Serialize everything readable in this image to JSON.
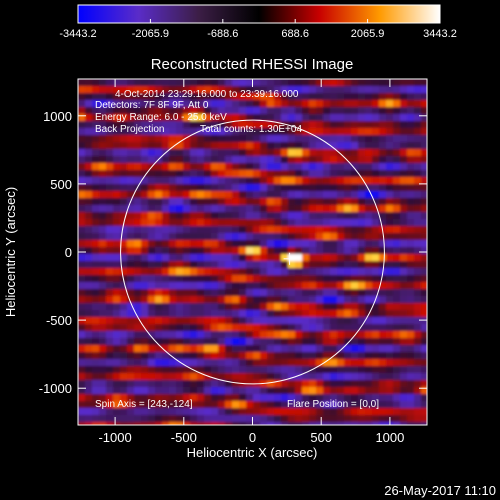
{
  "chart_data": {
    "type": "heatmap",
    "title": "Reconstructed RHESSI Image",
    "xlabel": "Heliocentric X (arcsec)",
    "ylabel": "Heliocentric Y (arcsec)",
    "xlim": [
      -1270,
      1270
    ],
    "ylim": [
      -1270,
      1270
    ],
    "xticks": [
      -1000,
      -500,
      0,
      500,
      1000
    ],
    "yticks": [
      -1000,
      -500,
      0,
      500,
      1000
    ],
    "xtick_labels": [
      "-1000",
      "-500",
      "0",
      "500",
      "1000"
    ],
    "ytick_labels": [
      "-1000",
      "-500",
      "0",
      "500",
      "1000"
    ],
    "colorbar": {
      "range": [
        -3443.2,
        3443.2
      ],
      "tick_labels": [
        "-3443.2",
        "-2065.9",
        "-688.6",
        "688.6",
        "2065.9",
        "3443.2"
      ],
      "colors": [
        "#0000ff",
        "#5a2cc8",
        "#3c1e46",
        "#000000",
        "#c80000",
        "#ff9a00",
        "#ffffff"
      ]
    },
    "annotations": [
      "4-Oct-2014 23:29:16.000 to 23:39:16.000",
      "Detectors: 7F 8F 9F, Att 0",
      "Energy Range: 6.0 - 25.0 keV",
      "Back Projection",
      "Total counts: 1.30E+04"
    ],
    "spin_axis": "Spin Axis = [243,-124]",
    "flare_position": "Flare Position = [0,0]",
    "solar_disk_radius": 960,
    "peak_source": {
      "x": 300,
      "y": -50
    },
    "marker": {
      "x": 270,
      "y": -50
    }
  },
  "footer_date": "26-May-2017 11:10"
}
